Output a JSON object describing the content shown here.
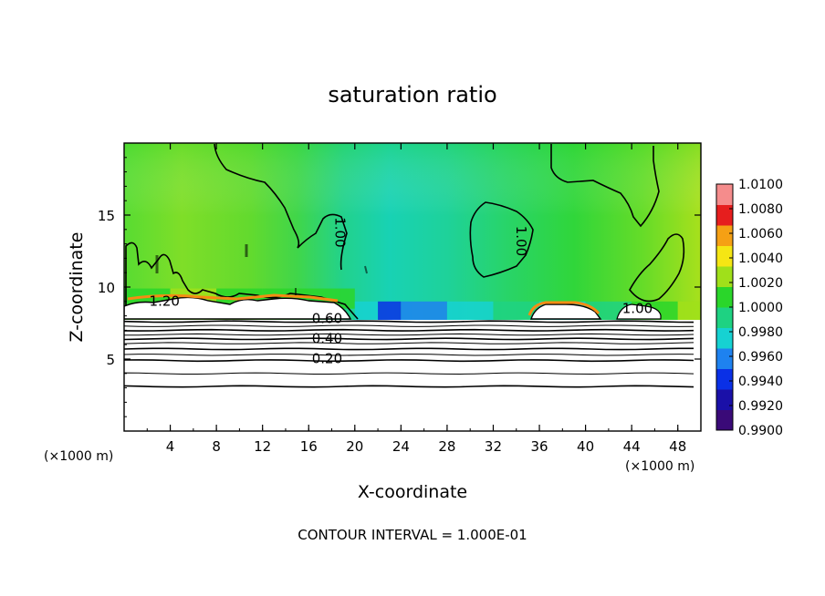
{
  "chart_data": {
    "type": "heatmap",
    "title": "saturation ratio",
    "xlabel": "X-coordinate",
    "ylabel": "Z-coordinate",
    "x_unit_left": "(×1000 m)",
    "x_unit_right": "(×1000 m)",
    "xlim": [
      0,
      50
    ],
    "ylim": [
      0,
      20
    ],
    "x_ticks": [
      4,
      8,
      12,
      16,
      20,
      24,
      28,
      32,
      36,
      40,
      44,
      48
    ],
    "y_ticks": [
      5,
      10,
      15
    ],
    "footer": "CONTOUR INTERVAL = 1.000E-01",
    "colorbar": {
      "range": [
        0.99,
        1.01
      ],
      "labels": [
        "1.0100",
        "1.0080",
        "1.0060",
        "1.0040",
        "1.0020",
        "1.0000",
        "0.9980",
        "0.9960",
        "0.9940",
        "0.9920",
        "0.9900"
      ],
      "colors": [
        "#3a0a78",
        "#1a10a8",
        "#0a30e6",
        "#1e82f0",
        "#16d2d2",
        "#1ed282",
        "#2ad62a",
        "#a0e01a",
        "#f5e614",
        "#f5a014",
        "#e61e1e",
        "#f58c8c"
      ]
    },
    "contour_labels": [
      {
        "text": "1.20",
        "x": 3.5,
        "z": 8.7
      },
      {
        "text": "1.00",
        "x": 18.3,
        "z": 13.8
      },
      {
        "text": "1.00",
        "x": 34.0,
        "z": 13.2
      },
      {
        "text": "1.00",
        "x": 44.5,
        "z": 8.2
      },
      {
        "text": "0.60",
        "x": 17.6,
        "z": 7.5
      },
      {
        "text": "0.40",
        "x": 17.6,
        "z": 6.1
      },
      {
        "text": "0.20",
        "x": 17.6,
        "z": 4.7
      }
    ],
    "contour_levels_below": [
      7.6,
      7.3,
      7.0,
      6.7,
      6.4,
      6.1,
      5.7,
      5.3,
      4.9,
      4.0,
      3.1
    ],
    "saturation_field": [
      {
        "x": 0,
        "z_min": 8.5,
        "value": 1.0008
      },
      {
        "x": 4,
        "z_min": 8.5,
        "value": 1.0022
      },
      {
        "x": 8,
        "z_min": 8.5,
        "value": 1.0012
      },
      {
        "x": 12,
        "z_min": 8.5,
        "value": 1.0008
      },
      {
        "x": 16,
        "z_min": 8.5,
        "value": 1.0016
      },
      {
        "x": 20,
        "z_min": 7.6,
        "value": 0.9975
      },
      {
        "x": 22,
        "z_min": 7.6,
        "value": 0.9948
      },
      {
        "x": 24,
        "z_min": 7.6,
        "value": 0.9966
      },
      {
        "x": 28,
        "z_min": 7.6,
        "value": 0.9978
      },
      {
        "x": 32,
        "z_min": 7.6,
        "value": 0.9985
      },
      {
        "x": 36,
        "z_min": 7.6,
        "value": 0.9982
      },
      {
        "x": 40,
        "z_min": 7.6,
        "value": 0.9995
      },
      {
        "x": 44,
        "z_min": 7.6,
        "value": 1.0005
      },
      {
        "x": 48,
        "z_min": 7.6,
        "value": 1.0022
      }
    ]
  }
}
